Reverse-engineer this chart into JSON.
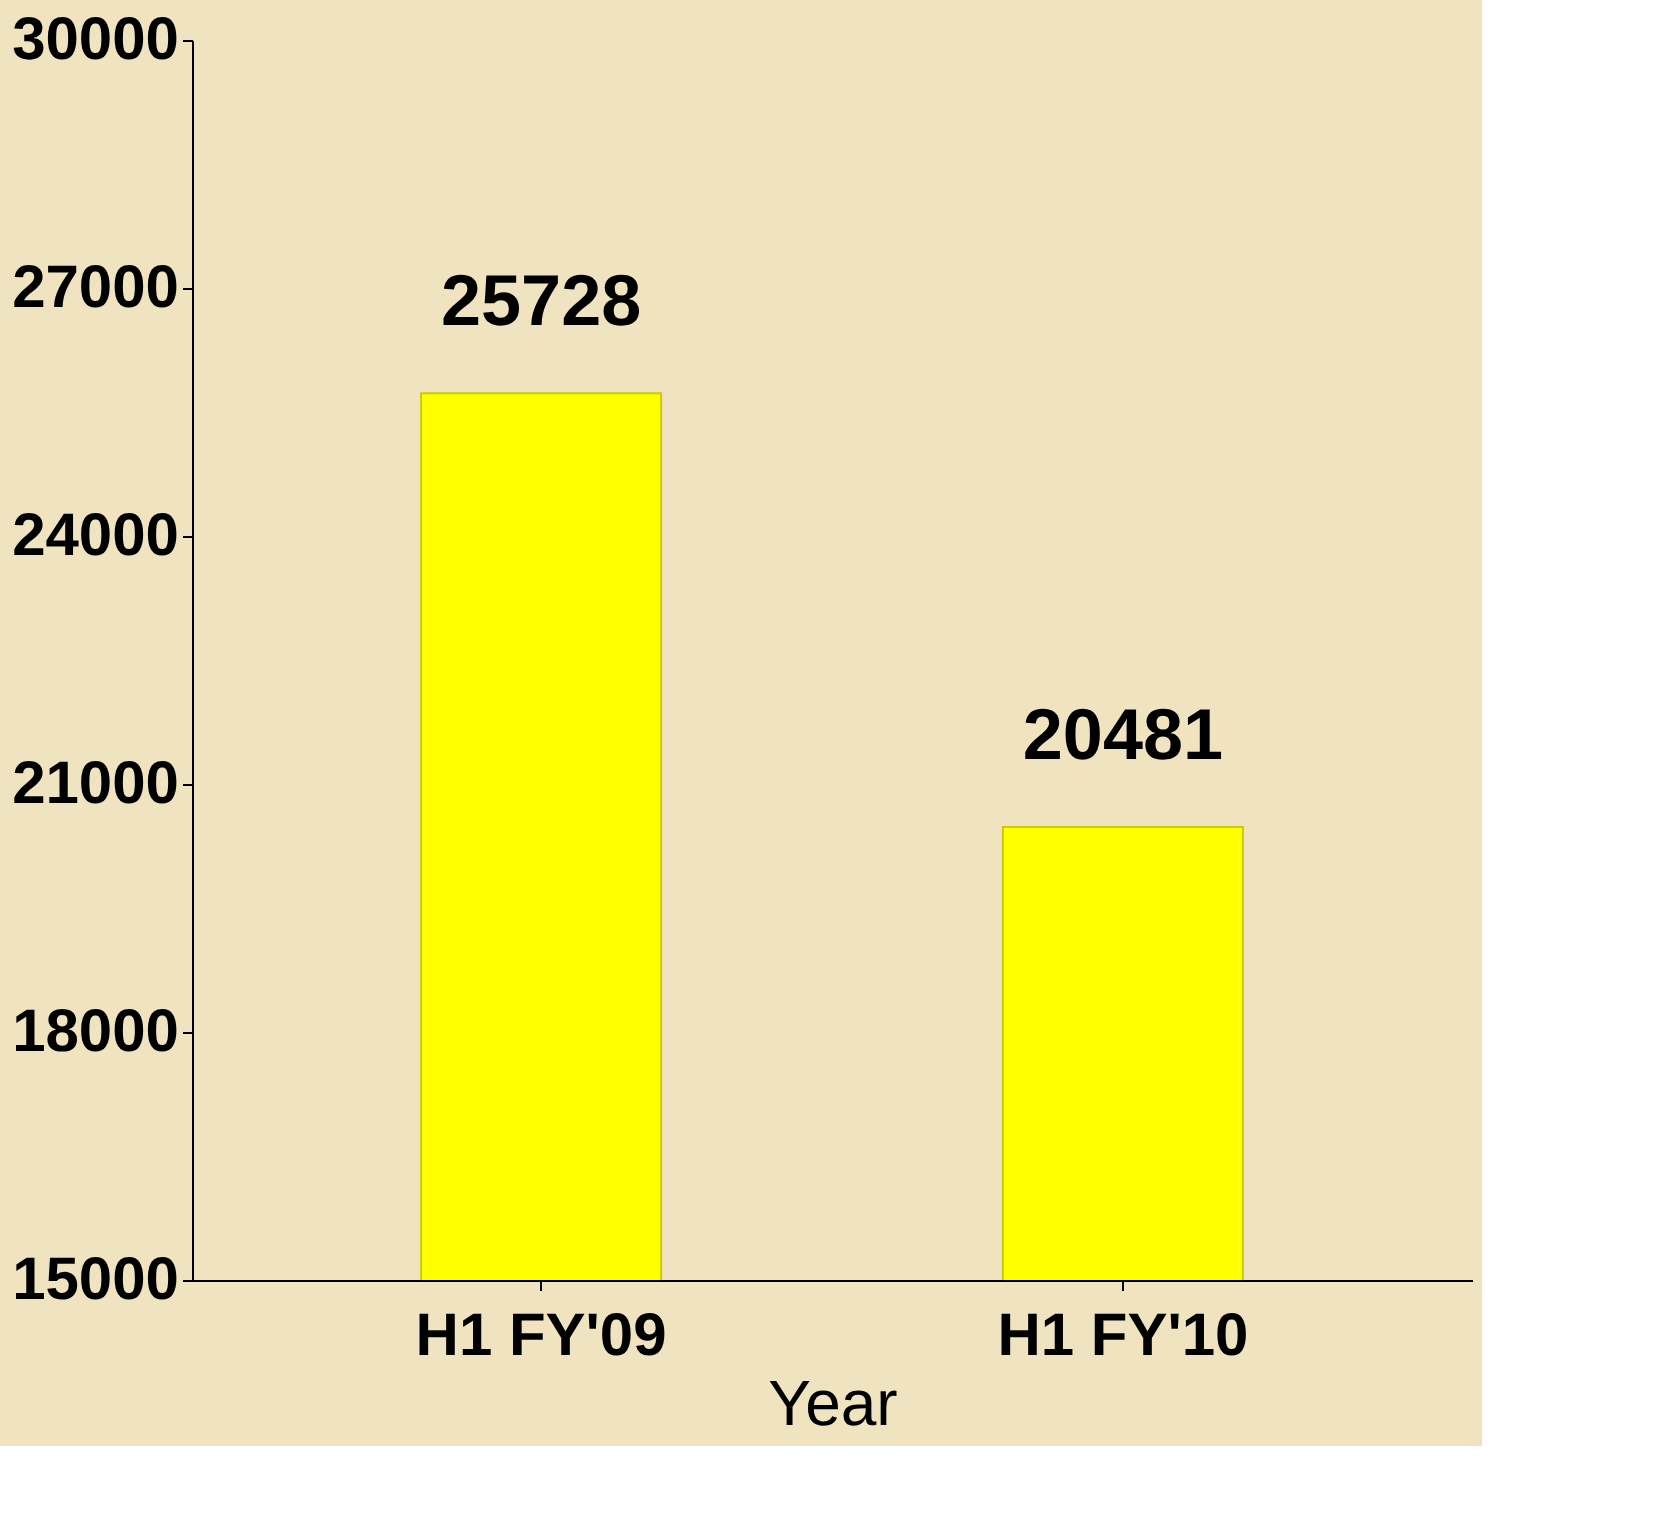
{
  "chart_data": {
    "type": "bar",
    "xlabel": "Year",
    "categories": [
      "H1 FY'09",
      "H1 FY'10"
    ],
    "values": [
      25728,
      20481
    ],
    "color": "#ffff00",
    "ylim": [
      15000,
      30000
    ],
    "yticks": [
      15000,
      18000,
      21000,
      24000,
      27000,
      30000
    ],
    "grid": false,
    "data_labels": true
  }
}
